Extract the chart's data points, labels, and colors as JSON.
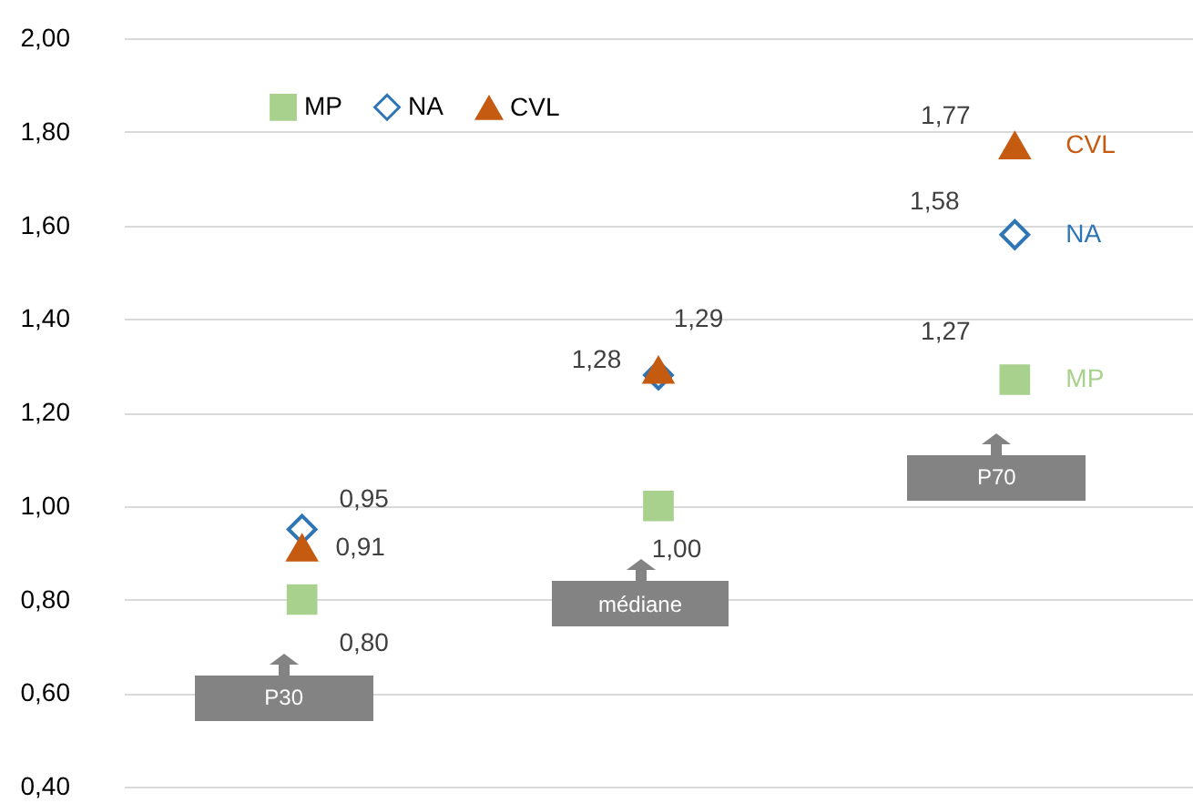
{
  "chart_data": {
    "type": "scatter",
    "categories": [
      null,
      null,
      null
    ],
    "series": [
      {
        "name": "MP",
        "color": "#a9d18e",
        "marker": "square",
        "values": [
          0.8,
          1.0,
          1.27
        ],
        "value_labels": [
          "0,80",
          "1,00",
          "1,27"
        ]
      },
      {
        "name": "NA",
        "color": "#2e75b6",
        "marker": "diamond",
        "values": [
          0.95,
          1.28,
          1.58
        ],
        "value_labels": [
          "0,95",
          "1,28",
          "1,58"
        ]
      },
      {
        "name": "CVL",
        "color": "#c55a11",
        "marker": "triangle",
        "values": [
          0.91,
          1.29,
          1.77
        ],
        "value_labels": [
          "0,91",
          "1,29",
          "1,77"
        ]
      }
    ],
    "ylim": [
      0.4,
      2.0
    ],
    "yticks": [
      {
        "value": 0.4,
        "label": "0,40"
      },
      {
        "value": 0.6,
        "label": "0,60"
      },
      {
        "value": 0.8,
        "label": "0,80"
      },
      {
        "value": 1.0,
        "label": "1,00"
      },
      {
        "value": 1.2,
        "label": "1,20"
      },
      {
        "value": 1.4,
        "label": "1,40"
      },
      {
        "value": 1.6,
        "label": "1,60"
      },
      {
        "value": 1.8,
        "label": "1,80"
      },
      {
        "value": 2.0,
        "label": "2,00"
      }
    ],
    "annotations": [
      "P30",
      "médiane",
      "P70"
    ],
    "grid": "y",
    "legend": "top",
    "tick_labels": "y"
  }
}
